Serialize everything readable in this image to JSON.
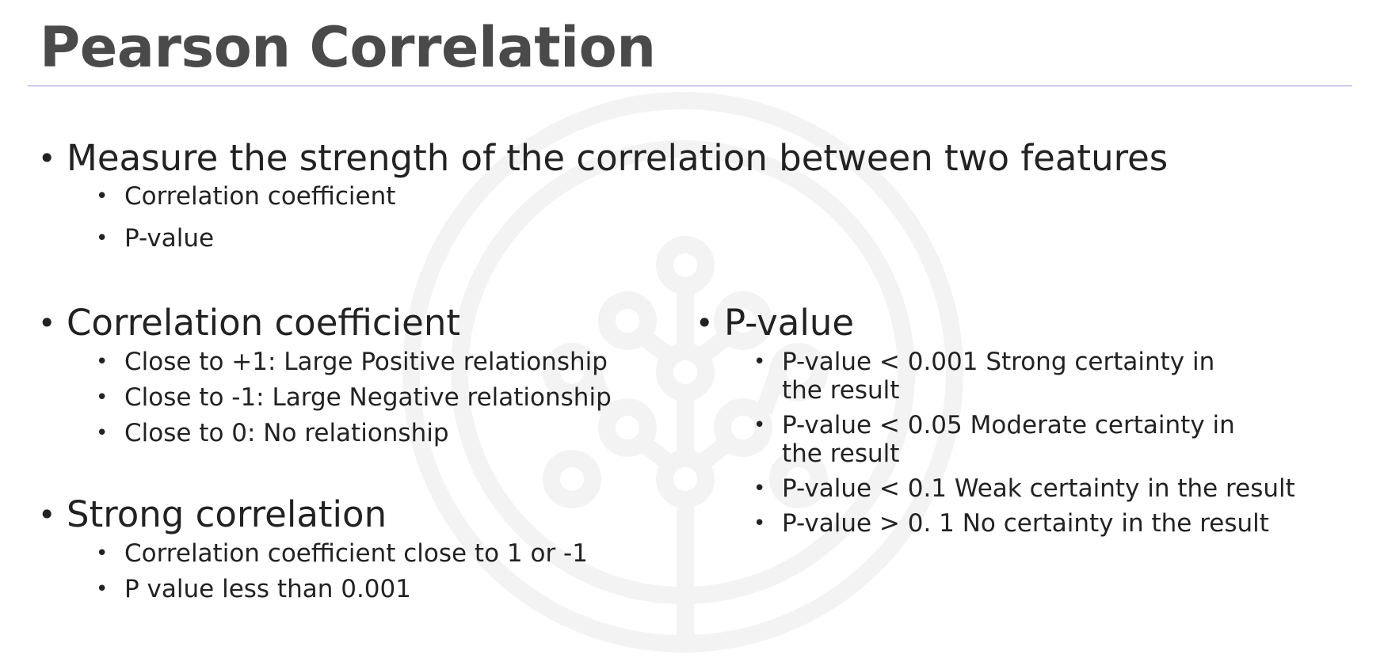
{
  "slide": {
    "title": "Pearson Correlation"
  },
  "measure": {
    "heading": "Measure the strength of the correlation between two features",
    "items": [
      "Correlation coefficient",
      "P-value"
    ]
  },
  "coefficient": {
    "heading": "Correlation coefficient",
    "items": [
      "Close to +1: Large Positive relationship",
      "Close to -1: Large Negative relationship",
      "Close to 0: No relationship"
    ]
  },
  "strong": {
    "heading": "Strong correlation",
    "items": [
      "Correlation coefficient close to 1 or -1",
      "P value less than 0.001"
    ]
  },
  "pvalue": {
    "heading": "P-value",
    "items": [
      "P-value < 0.001 Strong certainty in the result",
      "P-value < 0.05 Moderate certainty in the result",
      "P-value < 0.1 Weak certainty in the result",
      "P-value > 0. 1 No certainty in the result"
    ]
  },
  "colors": {
    "title": "#4a4a4a",
    "rule": "#9a93d6",
    "text": "#222222",
    "watermark": "#f3f3f3"
  }
}
